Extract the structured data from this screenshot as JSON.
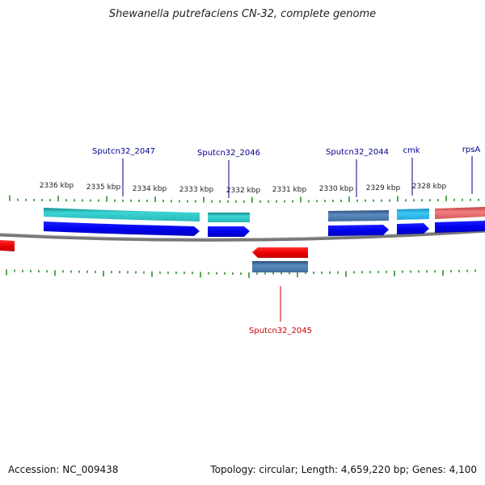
{
  "title": "Shewanella putrefaciens CN-32, complete genome",
  "footer": {
    "accession": "Accession: NC_009438",
    "summary": "Topology: circular; Length: 4,659,220 bp; Genes: 4,100"
  },
  "kbp_labels": [
    "2336 kbp",
    "2335 kbp",
    "2334 kbp",
    "2333 kbp",
    "2332 kbp",
    "2331 kbp",
    "2330 kbp",
    "2329 kbp",
    "2328 kbp"
  ],
  "genes": [
    {
      "label": "Sputcn32_2047",
      "color": "#00008b"
    },
    {
      "label": "Sputcn32_2046",
      "color": "#00008b"
    },
    {
      "label": "Sputcn32_2044",
      "color": "#00008b"
    },
    {
      "label": "cmk",
      "color": "#00008b"
    },
    {
      "label": "rpsA",
      "color": "#00008b"
    },
    {
      "label": "Sputcn32_2045",
      "color": "#cc0000"
    }
  ],
  "colors": {
    "cds_forward": "#0000ee",
    "cds_reverse": "#ee0000",
    "gene_teal": "#30c8c8",
    "gene_steel": "#4f7fb0",
    "gene_lightblue": "#2ab4e8",
    "gene_pink": "#e06060",
    "tick": "#1a8a1a",
    "backbone": "#777777"
  }
}
